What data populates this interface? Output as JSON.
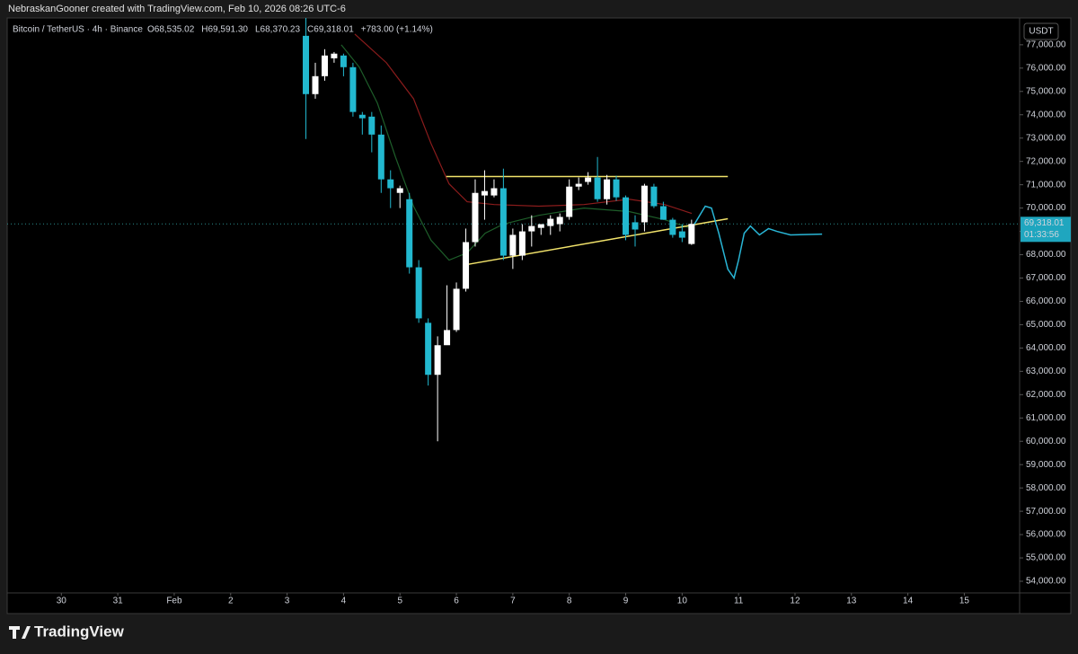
{
  "chart_data": {
    "type": "candlestick",
    "header": "NebraskanGooner created with TradingView.com, Feb 10, 2026 08:26 UTC-6",
    "symbol": "Bitcoin / TetherUS · 4h · Binance",
    "ohlc_labels": [
      "O68,535.02",
      "H69,591.30",
      "L68,370.23",
      "C69,318.01",
      "+783.00 (+1.14%)"
    ],
    "currency": "USDT",
    "last_price": {
      "value": 69318.01,
      "label": "69,318.01"
    },
    "countdown": "01:33:56",
    "brand": "TradingView",
    "up_color": "#ffffff",
    "down_color": "#22b8cf",
    "candles": {
      "x": [
        5.333,
        5.5,
        5.667,
        5.833,
        6.0,
        6.167,
        6.333,
        6.5,
        6.667,
        6.833,
        7.0,
        7.167,
        7.333,
        7.5,
        7.667,
        7.833,
        8.0,
        8.167,
        8.333,
        8.5,
        8.667,
        8.833,
        9.0,
        9.167,
        9.333,
        9.5,
        9.667,
        9.833,
        10.0,
        10.167,
        10.333,
        10.5,
        10.667,
        10.833,
        11.0,
        11.167,
        11.333,
        11.5,
        11.667,
        11.833,
        12.0,
        12.167
      ],
      "open": [
        77385,
        74885,
        75654,
        76420,
        76540,
        76040,
        74000,
        73920,
        73150,
        71230,
        70650,
        70380,
        67460,
        65080,
        62850,
        64120,
        64770,
        66540,
        68540,
        70540,
        70540,
        70850,
        67960,
        67960,
        69000,
        69150,
        69230,
        69310,
        69620,
        70920,
        71120,
        71310,
        70380,
        71230,
        70460,
        69390,
        69390,
        70920,
        70080,
        69500,
        69000,
        68460
      ],
      "high": [
        78150,
        76230,
        76810,
        76690,
        76620,
        76230,
        74120,
        74120,
        73540,
        71620,
        70960,
        70650,
        67770,
        65270,
        64500,
        66690,
        66810,
        69120,
        71230,
        71620,
        71230,
        71690,
        69120,
        69310,
        69690,
        69310,
        69690,
        69770,
        71230,
        71310,
        71540,
        72190,
        71420,
        71390,
        70540,
        69690,
        71040,
        71040,
        70270,
        69580,
        69310,
        69500
      ],
      "low": [
        72960,
        74690,
        75460,
        76230,
        75650,
        73920,
        73150,
        72390,
        70650,
        70000,
        70000,
        67190,
        65080,
        62390,
        60000,
        64310,
        64690,
        66420,
        68350,
        69500,
        70460,
        67770,
        67390,
        67770,
        68350,
        68850,
        68850,
        69000,
        69500,
        70770,
        71000,
        70270,
        70150,
        70310,
        68620,
        68350,
        69000,
        70000,
        69500,
        68730,
        68540,
        68420
      ],
      "close": [
        74885,
        75654,
        76540,
        76620,
        76040,
        74120,
        73850,
        73150,
        71230,
        70850,
        70850,
        67460,
        65270,
        62850,
        64120,
        64770,
        66540,
        68540,
        70650,
        70730,
        70850,
        67960,
        68850,
        69000,
        69230,
        69310,
        69540,
        69620,
        70920,
        71040,
        71310,
        70380,
        71230,
        70460,
        68850,
        69080,
        70960,
        70080,
        69500,
        68850,
        68730,
        69320
      ]
    },
    "lines": [
      {
        "color": "#8b1c1c",
        "x": [
          6.2,
          6.76,
          7.24,
          7.55,
          7.87,
          8.19,
          8.67,
          9.46,
          10.26,
          11.06,
          11.69,
          12.17
        ],
        "values": [
          77460,
          76230,
          74690,
          72770,
          71040,
          70270,
          70150,
          70080,
          70150,
          70380,
          70150,
          69770
        ]
      },
      {
        "color": "#1e5e2a",
        "x": [
          5.96,
          6.28,
          6.6,
          6.92,
          7.24,
          7.55,
          7.87,
          8.19,
          8.51,
          8.83,
          9.46,
          10.26,
          11.06,
          11.69,
          12.17
        ],
        "values": [
          77000,
          76040,
          74500,
          72190,
          70080,
          68620,
          67770,
          68080,
          68920,
          69310,
          69690,
          70000,
          69850,
          69500,
          69120
        ]
      },
      {
        "color": "#f2e36b",
        "x": [
          7.82,
          12.81
        ],
        "values": [
          71350,
          71350
        ]
      },
      {
        "color": "#f2e36b",
        "x": [
          8.19,
          12.81
        ],
        "values": [
          67580,
          69540
        ]
      },
      {
        "color": "#29b6d6",
        "x": [
          12.17,
          12.41,
          12.52,
          12.65,
          12.81,
          12.92,
          13.0,
          13.1,
          13.21,
          13.37,
          13.53,
          13.68,
          13.92,
          14.48
        ],
        "values": [
          69120,
          70080,
          70000,
          68920,
          67380,
          67000,
          67770,
          68920,
          69230,
          68850,
          69120,
          69000,
          68850,
          68880
        ]
      }
    ],
    "xlim": [
      0.04,
      17.98
    ],
    "xticks": [
      {
        "value": 1,
        "label": "30"
      },
      {
        "value": 2,
        "label": "31"
      },
      {
        "value": 3,
        "label": "Feb"
      },
      {
        "value": 4,
        "label": "2"
      },
      {
        "value": 5,
        "label": "3"
      },
      {
        "value": 6,
        "label": "4"
      },
      {
        "value": 7,
        "label": "5"
      },
      {
        "value": 8,
        "label": "6"
      },
      {
        "value": 9,
        "label": "7"
      },
      {
        "value": 10,
        "label": "8"
      },
      {
        "value": 11,
        "label": "9"
      },
      {
        "value": 12,
        "label": "10"
      },
      {
        "value": 13,
        "label": "11"
      },
      {
        "value": 14,
        "label": "12"
      },
      {
        "value": 15,
        "label": "13"
      },
      {
        "value": 16,
        "label": "14"
      },
      {
        "value": 17,
        "label": "15"
      }
    ],
    "ylim": [
      53500,
      78150
    ],
    "yticks": [
      {
        "value": 54000,
        "label": "54,000.00"
      },
      {
        "value": 55000,
        "label": "55,000.00"
      },
      {
        "value": 56000,
        "label": "56,000.00"
      },
      {
        "value": 57000,
        "label": "57,000.00"
      },
      {
        "value": 58000,
        "label": "58,000.00"
      },
      {
        "value": 59000,
        "label": "59,000.00"
      },
      {
        "value": 60000,
        "label": "60,000.00"
      },
      {
        "value": 61000,
        "label": "61,000.00"
      },
      {
        "value": 62000,
        "label": "62,000.00"
      },
      {
        "value": 63000,
        "label": "63,000.00"
      },
      {
        "value": 64000,
        "label": "64,000.00"
      },
      {
        "value": 65000,
        "label": "65,000.00"
      },
      {
        "value": 66000,
        "label": "66,000.00"
      },
      {
        "value": 67000,
        "label": "67,000.00"
      },
      {
        "value": 68000,
        "label": "68,000.00"
      },
      {
        "value": 69000,
        "label": "69,000.00"
      },
      {
        "value": 70000,
        "label": "70,000.00"
      },
      {
        "value": 71000,
        "label": "71,000.00"
      },
      {
        "value": 72000,
        "label": "72,000.00"
      },
      {
        "value": 73000,
        "label": "73,000.00"
      },
      {
        "value": 74000,
        "label": "74,000.00"
      },
      {
        "value": 75000,
        "label": "75,000.00"
      },
      {
        "value": 76000,
        "label": "76,000.00"
      },
      {
        "value": 77000,
        "label": "77,000.00"
      }
    ]
  }
}
